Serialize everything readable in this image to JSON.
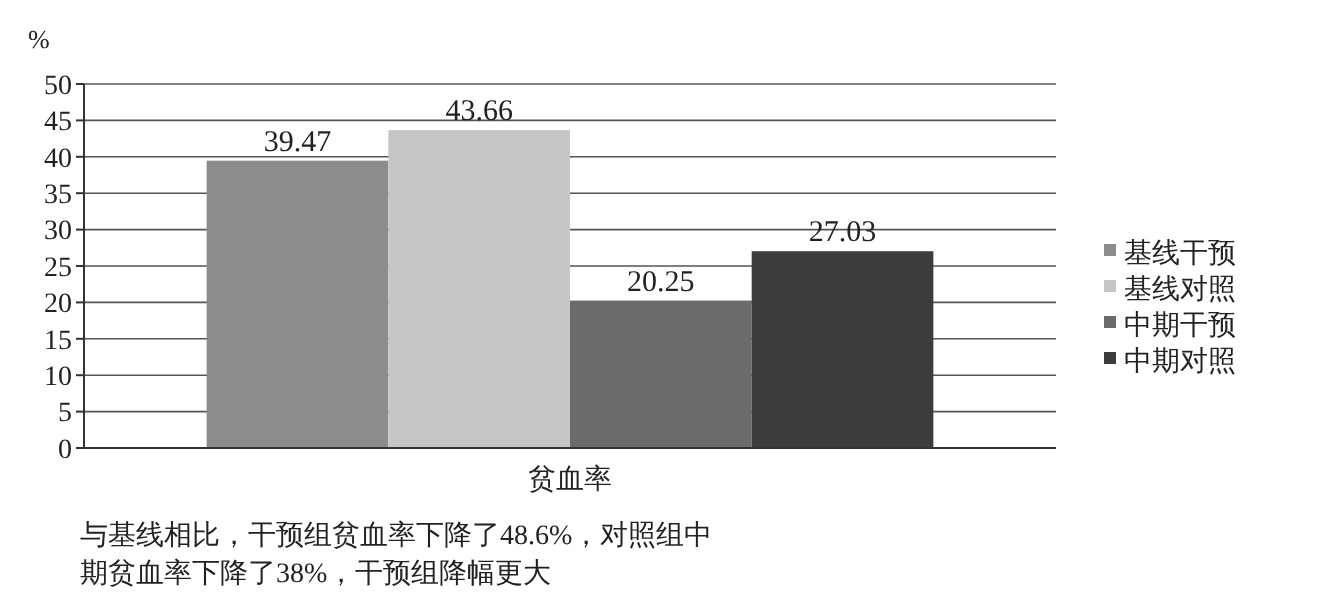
{
  "chart_data": {
    "type": "bar",
    "ylabel": "%",
    "categories": [
      "贫血率"
    ],
    "series": [
      {
        "name": "基线干预",
        "color": "#8c8c8c",
        "values": [
          39.47
        ]
      },
      {
        "name": "基线对照",
        "color": "#c6c6c6",
        "values": [
          43.66
        ]
      },
      {
        "name": "中期干预",
        "color": "#6b6b6b",
        "values": [
          20.25
        ]
      },
      {
        "name": "中期对照",
        "color": "#3c3c3c",
        "values": [
          27.03
        ]
      }
    ],
    "ylim": [
      0,
      50
    ],
    "yticks": [
      0,
      5,
      10,
      15,
      20,
      25,
      30,
      35,
      40,
      45,
      50
    ],
    "grid": "y",
    "legend": "right",
    "data_labels": true,
    "annotations": [
      "与基线相比，干预组贫血率下降了48.6%，对照组中期贫血率下降了38%，干预组降幅更大"
    ]
  }
}
